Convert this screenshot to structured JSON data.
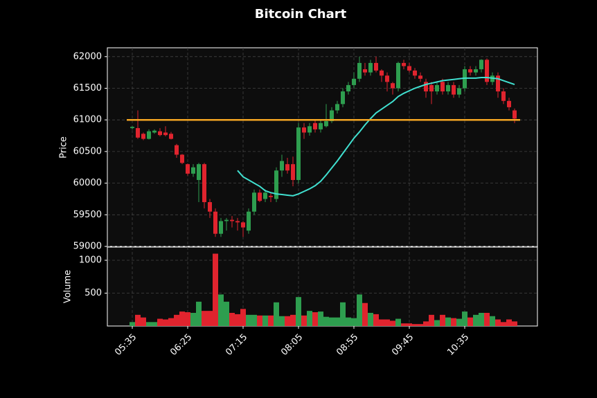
{
  "chart_data": {
    "type": "candlestick",
    "title": "Bitcoin Chart",
    "y_label": "Price",
    "volume_label": "Volume",
    "categories": [
      "05:35",
      null,
      null,
      null,
      null,
      null,
      null,
      null,
      null,
      null,
      "06:25",
      null,
      null,
      null,
      null,
      null,
      null,
      null,
      null,
      null,
      "07:15",
      null,
      null,
      null,
      null,
      null,
      null,
      null,
      null,
      null,
      "08:05",
      null,
      null,
      null,
      null,
      null,
      null,
      null,
      null,
      null,
      "08:55",
      null,
      null,
      null,
      null,
      null,
      null,
      null,
      null,
      null,
      "09:45",
      null,
      null,
      null,
      null,
      null,
      null,
      null,
      null,
      null,
      "10:35",
      null,
      null,
      null,
      null,
      null,
      null,
      null,
      null,
      null
    ],
    "open": [
      60870,
      60870,
      60780,
      60700,
      60800,
      60820,
      60800,
      60780,
      60600,
      60450,
      60300,
      60150,
      60050,
      60300,
      59700,
      59550,
      59200,
      59400,
      59420,
      59400,
      59380,
      59250,
      59550,
      59850,
      59750,
      59800,
      59750,
      60200,
      60300,
      60300,
      60050,
      60880,
      60800,
      60950,
      60850,
      60900,
      60980,
      61150,
      61250,
      61450,
      61550,
      61650,
      61800,
      61750,
      61900,
      61780,
      61700,
      61580,
      61500,
      61900,
      61850,
      61780,
      61700,
      61600,
      61550,
      61450,
      61600,
      61450,
      61550,
      61400,
      61500,
      61800,
      61750,
      61800,
      61950,
      61600,
      61700,
      61450,
      61300,
      61150
    ],
    "high": [
      60900,
      61150,
      60800,
      60850,
      60850,
      60870,
      60900,
      60810,
      60620,
      60460,
      60310,
      60300,
      60320,
      60320,
      59750,
      59600,
      59450,
      59450,
      59480,
      59450,
      59400,
      59600,
      59900,
      59900,
      59900,
      59850,
      60250,
      60450,
      60400,
      60420,
      60950,
      60950,
      60950,
      61000,
      61000,
      61250,
      61200,
      61300,
      61500,
      61600,
      61750,
      62000,
      61900,
      61950,
      62000,
      61800,
      61750,
      61600,
      61920,
      61950,
      61900,
      61820,
      61750,
      61650,
      61600,
      61600,
      61650,
      61600,
      61600,
      61550,
      61850,
      61850,
      61850,
      61960,
      61970,
      61750,
      61750,
      61500,
      61350,
      61180
    ],
    "low": [
      60850,
      60700,
      60680,
      60690,
      60780,
      60740,
      60740,
      60690,
      60400,
      60300,
      60120,
      60100,
      59700,
      59600,
      59450,
      59150,
      59150,
      59250,
      59300,
      59250,
      59150,
      59200,
      59500,
      59700,
      59700,
      59700,
      59700,
      60100,
      60150,
      59950,
      60000,
      60700,
      60750,
      60800,
      60800,
      60880,
      60950,
      61100,
      61200,
      61400,
      61500,
      61600,
      61700,
      61700,
      61750,
      61600,
      61450,
      61400,
      61450,
      61800,
      61750,
      61650,
      61600,
      61350,
      61250,
      61400,
      61400,
      61400,
      61350,
      61350,
      61450,
      61700,
      61700,
      61750,
      61550,
      61550,
      61350,
      61250,
      61150,
      60950
    ],
    "close": [
      60890,
      60720,
      60700,
      60820,
      60830,
      60760,
      60760,
      60700,
      60450,
      60320,
      60150,
      60250,
      60300,
      59700,
      59550,
      59200,
      59400,
      59420,
      59400,
      59380,
      59300,
      59550,
      59850,
      59720,
      59850,
      59780,
      60200,
      60350,
      60200,
      60050,
      60880,
      60800,
      60900,
      60850,
      60950,
      60980,
      61150,
      61250,
      61450,
      61550,
      61650,
      61900,
      61750,
      61900,
      61780,
      61700,
      61600,
      61500,
      61900,
      61850,
      61780,
      61700,
      61650,
      61450,
      61450,
      61550,
      61450,
      61550,
      61400,
      61500,
      61800,
      61750,
      61800,
      61950,
      61600,
      61700,
      61450,
      61300,
      61200,
      61020
    ],
    "volume": [
      60,
      170,
      130,
      60,
      60,
      110,
      100,
      120,
      170,
      220,
      210,
      200,
      370,
      230,
      230,
      1100,
      480,
      370,
      200,
      180,
      260,
      170,
      170,
      160,
      160,
      160,
      360,
      150,
      150,
      170,
      440,
      160,
      230,
      210,
      220,
      140,
      130,
      130,
      360,
      130,
      120,
      480,
      350,
      200,
      180,
      100,
      100,
      80,
      110,
      40,
      40,
      30,
      30,
      70,
      170,
      90,
      170,
      130,
      120,
      110,
      220,
      130,
      170,
      200,
      200,
      150,
      100,
      60,
      100,
      70
    ],
    "moving_average": {
      "color": "#40e0d0",
      "values": [
        null,
        null,
        null,
        null,
        null,
        null,
        null,
        null,
        null,
        null,
        null,
        null,
        null,
        null,
        null,
        null,
        null,
        null,
        null,
        60200,
        60100,
        60050,
        60000,
        59950,
        59880,
        59850,
        59830,
        59820,
        59810,
        59800,
        59830,
        59870,
        59910,
        59960,
        60030,
        60130,
        60240,
        60350,
        60470,
        60590,
        60710,
        60810,
        60920,
        61020,
        61110,
        61170,
        61230,
        61290,
        61370,
        61420,
        61460,
        61500,
        61530,
        61560,
        61580,
        61600,
        61620,
        61630,
        61640,
        61650,
        61660,
        61660,
        61660,
        61670,
        61670,
        61660,
        61650,
        61620,
        61590,
        61560
      ]
    },
    "hline": {
      "value": 61000,
      "color": "#f5a623"
    },
    "up_color": "#2e9e4f",
    "down_color": "#e0242e",
    "ylim": [
      59000,
      62140
    ],
    "yticks": [
      59000,
      59500,
      60000,
      60500,
      61000,
      61500,
      62000
    ],
    "volume_ylim": [
      0,
      1200
    ],
    "volume_yticks": [
      500,
      1000
    ],
    "grid": true
  }
}
